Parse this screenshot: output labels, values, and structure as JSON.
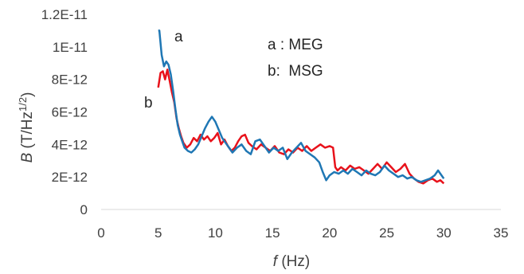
{
  "chart_data": {
    "type": "line",
    "title": "",
    "xlabel": "f (Hz)",
    "ylabel": "B (T/Hz^1/2)",
    "xlim": [
      0,
      35
    ],
    "ylim": [
      0,
      1.2e-11
    ],
    "grid": false,
    "x_ticks": [
      0,
      5,
      10,
      15,
      20,
      25,
      30,
      35
    ],
    "x_tick_labels": [
      "0",
      "5",
      "10",
      "15",
      "20",
      "25",
      "30",
      "35"
    ],
    "y_ticks": [
      0,
      2e-12,
      4e-12,
      6e-12,
      8e-12,
      1e-11,
      1.2e-11
    ],
    "y_tick_labels": [
      "0",
      "2E-12",
      "4E-12",
      "6E-12",
      "8E-12",
      "1E-11",
      "1.2E-11"
    ],
    "legend_lines": [
      "a : MEG",
      "b:  MSG"
    ],
    "legend_position": "top-right",
    "series": [
      {
        "tag": "a",
        "color": "#1f77b4",
        "x": [
          5.0,
          5.1,
          5.3,
          5.5,
          5.7,
          5.9,
          6.1,
          6.3,
          6.5,
          6.7,
          6.9,
          7.1,
          7.3,
          7.6,
          7.9,
          8.2,
          8.5,
          8.8,
          9.1,
          9.4,
          9.7,
          10.0,
          10.3,
          10.6,
          10.9,
          11.2,
          11.5,
          11.9,
          12.3,
          12.7,
          13.1,
          13.5,
          13.9,
          14.3,
          14.7,
          15.1,
          15.5,
          15.9,
          16.3,
          16.7,
          17.1,
          17.5,
          17.9,
          18.3,
          18.7,
          19.1,
          19.4,
          19.7,
          20.0,
          20.4,
          20.8,
          21.2,
          21.6,
          22.0,
          22.4,
          22.8,
          23.2,
          23.6,
          24.0,
          24.4,
          24.8,
          25.2,
          25.6,
          26.0,
          26.4,
          26.8,
          27.2,
          27.6,
          28.0,
          28.4,
          28.8,
          29.2,
          29.5,
          29.7,
          30.0
        ],
        "values": [
          1.1e-11,
          1.1e-11,
          9.5e-12,
          8.8e-12,
          9.1e-12,
          8.9e-12,
          8.3e-12,
          7.3e-12,
          6.2e-12,
          5.2e-12,
          4.6e-12,
          4.2e-12,
          3.8e-12,
          3.6e-12,
          3.5e-12,
          3.7e-12,
          4e-12,
          4.5e-12,
          5e-12,
          5.4e-12,
          5.7e-12,
          5.4e-12,
          4.9e-12,
          4.4e-12,
          4.1e-12,
          3.8e-12,
          3.5e-12,
          3.8e-12,
          4e-12,
          3.6e-12,
          3.4e-12,
          4.2e-12,
          4.3e-12,
          3.9e-12,
          3.5e-12,
          3.8e-12,
          3.6e-12,
          3.8e-12,
          3.1e-12,
          3.5e-12,
          3.8e-12,
          4.1e-12,
          3.6e-12,
          3.4e-12,
          3.2e-12,
          2.9e-12,
          2.3e-12,
          1.8e-12,
          2.1e-12,
          2.3e-12,
          2.2e-12,
          2.4e-12,
          2.2e-12,
          2.5e-12,
          2.3e-12,
          2.1e-12,
          2.4e-12,
          2.2e-12,
          2.1e-12,
          2.3e-12,
          2.7e-12,
          2.4e-12,
          2.2e-12,
          2e-12,
          2.1e-12,
          1.9e-12,
          2e-12,
          1.8e-12,
          1.7e-12,
          1.8e-12,
          1.9e-12,
          2.1e-12,
          2.4e-12,
          2.2e-12,
          1.9e-12
        ]
      },
      {
        "tag": "b",
        "color": "#e8121b",
        "x": [
          5.0,
          5.2,
          5.4,
          5.6,
          5.8,
          6.0,
          6.2,
          6.4,
          6.6,
          6.8,
          7.0,
          7.2,
          7.5,
          7.8,
          8.1,
          8.4,
          8.7,
          9.0,
          9.3,
          9.6,
          9.9,
          10.2,
          10.5,
          10.8,
          11.1,
          11.4,
          11.7,
          12.0,
          12.3,
          12.6,
          12.9,
          13.2,
          13.6,
          14.0,
          14.4,
          14.8,
          15.2,
          15.6,
          16.0,
          16.4,
          16.8,
          17.2,
          17.6,
          18.0,
          18.4,
          18.8,
          19.2,
          19.6,
          20.0,
          20.3,
          20.5,
          20.7,
          21.0,
          21.4,
          21.8,
          22.2,
          22.6,
          23.0,
          23.4,
          23.8,
          24.2,
          24.6,
          25.0,
          25.4,
          25.8,
          26.2,
          26.6,
          27.0,
          27.4,
          27.8,
          28.2,
          28.6,
          29.0,
          29.4,
          29.7,
          30.0
        ],
        "values": [
          7.5e-12,
          8.4e-12,
          8.5e-12,
          8e-12,
          8.6e-12,
          7.9e-12,
          7.2e-12,
          6.6e-12,
          5.6e-12,
          5e-12,
          4.5e-12,
          4.1e-12,
          3.8e-12,
          4e-12,
          4.4e-12,
          4.2e-12,
          4.6e-12,
          4.3e-12,
          4.5e-12,
          4.2e-12,
          4.4e-12,
          4.7e-12,
          4e-12,
          4.3e-12,
          3.9e-12,
          3.6e-12,
          3.8e-12,
          4.2e-12,
          4.5e-12,
          4.6e-12,
          4.1e-12,
          3.9e-12,
          3.7e-12,
          4e-12,
          3.8e-12,
          3.6e-12,
          3.9e-12,
          3.5e-12,
          3.4e-12,
          3.7e-12,
          3.5e-12,
          3.8e-12,
          3.6e-12,
          3.9e-12,
          3.6e-12,
          3.8e-12,
          4e-12,
          3.8e-12,
          3.9e-12,
          3.8e-12,
          2.6e-12,
          2.4e-12,
          2.6e-12,
          2.4e-12,
          2.7e-12,
          2.5e-12,
          2.6e-12,
          2.4e-12,
          2.2e-12,
          2.5e-12,
          2.8e-12,
          2.5e-12,
          2.9e-12,
          2.6e-12,
          2.3e-12,
          2.5e-12,
          2.8e-12,
          2.2e-12,
          1.9e-12,
          1.7e-12,
          1.6e-12,
          1.8e-12,
          1.9e-12,
          1.7e-12,
          1.8e-12,
          1.6e-12
        ]
      }
    ]
  }
}
